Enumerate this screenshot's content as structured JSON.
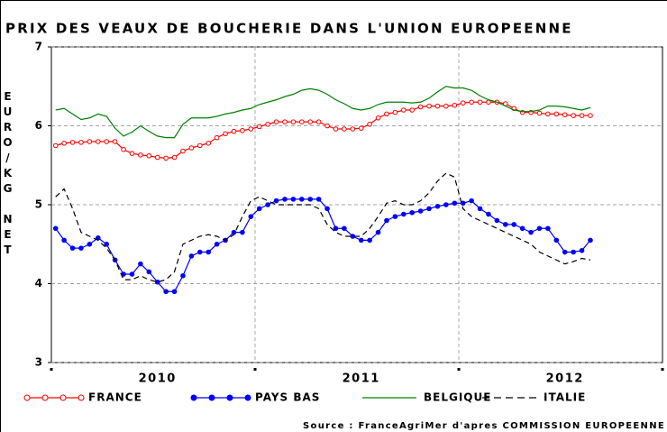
{
  "chart_data": {
    "type": "line",
    "title": "PRIX DES VEAUX DE BOUCHERIE DANS L'UNION EUROPEENNE",
    "y_label": "EURO/KG NET",
    "source": "Source : FranceAgriMer d'apres COMMISSION EUROPEENNE",
    "categories": [
      null,
      null,
      null,
      null,
      null,
      null,
      null,
      null,
      null,
      null,
      null,
      null,
      "2010",
      null,
      null,
      null,
      null,
      null,
      null,
      null,
      null,
      null,
      null,
      null,
      null,
      null,
      null,
      null,
      null,
      null,
      null,
      null,
      null,
      null,
      null,
      null,
      "2011",
      null,
      null,
      null,
      null,
      null,
      null,
      null,
      null,
      null,
      null,
      null,
      null,
      null,
      null,
      null,
      null,
      null,
      null,
      null,
      null,
      null,
      null,
      null,
      "2012",
      null,
      null,
      null,
      null,
      null,
      null,
      null,
      null,
      null,
      null,
      null
    ],
    "ylim": [
      3,
      7
    ],
    "yticks": [
      3,
      4,
      5,
      6,
      7
    ],
    "grid": true,
    "series": [
      {
        "name": "FRANCE",
        "color": "#ff0000",
        "marker": "circle-open",
        "values": [
          5.75,
          5.78,
          5.79,
          5.79,
          5.8,
          5.8,
          5.8,
          5.8,
          5.7,
          5.65,
          5.63,
          5.62,
          5.6,
          5.59,
          5.6,
          5.68,
          5.72,
          5.75,
          5.78,
          5.85,
          5.9,
          5.93,
          5.94,
          5.96,
          5.99,
          6.02,
          6.05,
          6.05,
          6.05,
          6.05,
          6.05,
          6.05,
          6.0,
          5.96,
          5.96,
          5.96,
          5.97,
          6.02,
          6.1,
          6.15,
          6.17,
          6.2,
          6.2,
          6.24,
          6.25,
          6.25,
          6.25,
          6.26,
          6.29,
          6.3,
          6.3,
          6.3,
          6.3,
          6.28,
          6.22,
          6.17,
          6.17,
          6.16,
          6.15,
          6.15,
          6.14,
          6.13,
          6.13,
          6.13,
          null,
          null,
          null,
          null,
          null,
          null,
          null,
          null
        ]
      },
      {
        "name": "PAYS BAS",
        "color": "#0000ff",
        "marker": "circle-filled",
        "values": [
          4.7,
          4.55,
          4.45,
          4.45,
          4.5,
          4.58,
          4.5,
          4.3,
          4.12,
          4.12,
          4.25,
          4.15,
          4.02,
          3.9,
          3.9,
          4.1,
          4.35,
          4.4,
          4.4,
          4.5,
          4.55,
          4.65,
          4.65,
          4.85,
          4.95,
          5.0,
          5.05,
          5.07,
          5.07,
          5.07,
          5.07,
          5.07,
          4.95,
          4.7,
          4.7,
          4.6,
          4.55,
          4.55,
          4.65,
          4.8,
          4.85,
          4.88,
          4.9,
          4.92,
          4.95,
          4.98,
          5.0,
          5.02,
          5.02,
          5.05,
          4.95,
          4.88,
          4.8,
          4.75,
          4.75,
          4.7,
          4.65,
          4.7,
          4.7,
          4.55,
          4.4,
          4.4,
          4.42,
          4.55,
          null,
          null,
          null,
          null,
          null,
          null,
          null,
          null
        ]
      },
      {
        "name": "BELGIQUE",
        "color": "#008000",
        "values": [
          6.2,
          6.22,
          6.15,
          6.08,
          6.1,
          6.15,
          6.12,
          5.97,
          5.87,
          5.92,
          6.0,
          5.93,
          5.87,
          5.85,
          5.85,
          6.02,
          6.1,
          6.1,
          6.1,
          6.12,
          6.15,
          6.17,
          6.2,
          6.22,
          6.27,
          6.3,
          6.33,
          6.37,
          6.4,
          6.45,
          6.47,
          6.45,
          6.4,
          6.33,
          6.28,
          6.22,
          6.2,
          6.22,
          6.27,
          6.3,
          6.3,
          6.3,
          6.29,
          6.3,
          6.35,
          6.43,
          6.5,
          6.48,
          6.48,
          6.45,
          6.38,
          6.33,
          6.3,
          6.25,
          6.2,
          6.18,
          6.18,
          6.2,
          6.25,
          6.25,
          6.24,
          6.22,
          6.2,
          6.23,
          null,
          null,
          null,
          null,
          null,
          null,
          null,
          null
        ]
      },
      {
        "name": "ITALIE",
        "color": "#000000",
        "dash": true,
        "values": [
          5.1,
          5.2,
          4.95,
          4.65,
          4.6,
          4.55,
          4.45,
          4.3,
          4.05,
          4.05,
          4.1,
          4.05,
          4.02,
          4.05,
          4.15,
          4.5,
          4.55,
          4.6,
          4.62,
          4.6,
          4.55,
          4.62,
          4.85,
          5.05,
          5.1,
          5.05,
          5.0,
          5.0,
          5.0,
          5.0,
          5.0,
          4.95,
          4.75,
          4.65,
          4.6,
          4.6,
          4.6,
          4.7,
          4.85,
          5.02,
          5.05,
          5.0,
          5.0,
          5.05,
          5.15,
          5.3,
          5.4,
          5.35,
          4.95,
          4.85,
          4.8,
          4.75,
          4.7,
          4.65,
          4.6,
          4.55,
          4.5,
          4.4,
          4.35,
          4.3,
          4.25,
          4.28,
          4.32,
          4.3,
          null,
          null,
          null,
          null,
          null,
          null,
          null,
          null
        ]
      }
    ]
  }
}
